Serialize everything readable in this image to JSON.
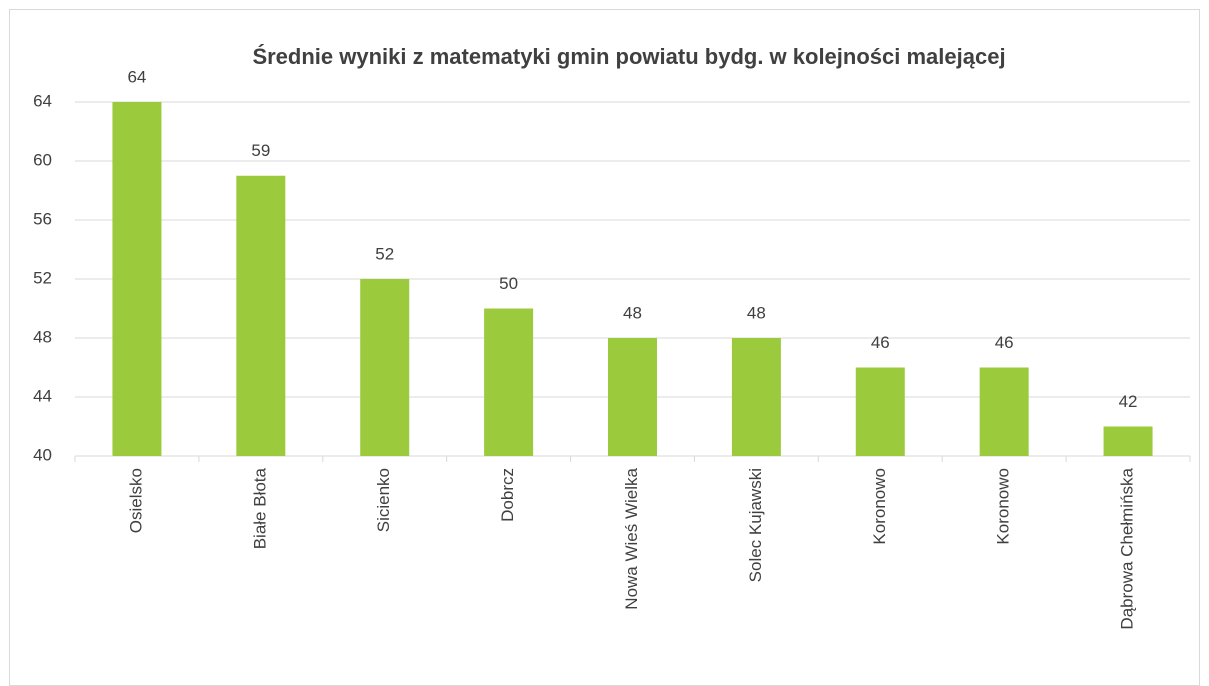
{
  "chart_data": {
    "type": "bar",
    "title": "Średnie wyniki z matematyki gmin powiatu bydg. w kolejności malejącej",
    "categories": [
      "Osielsko",
      "Białe Błota",
      "Sicienko",
      "Dobrcz",
      "Nowa Wieś Wielka",
      "Solec Kujawski",
      "Koronowo",
      "Koronowo",
      "Dąbrowa Chełmińska"
    ],
    "values": [
      64,
      59,
      52,
      50,
      48,
      48,
      46,
      46,
      42
    ],
    "color": "#9bcb3c",
    "ylim": [
      40,
      64
    ],
    "yticks": [
      40,
      44,
      48,
      52,
      56,
      60,
      64
    ],
    "grid": true
  }
}
